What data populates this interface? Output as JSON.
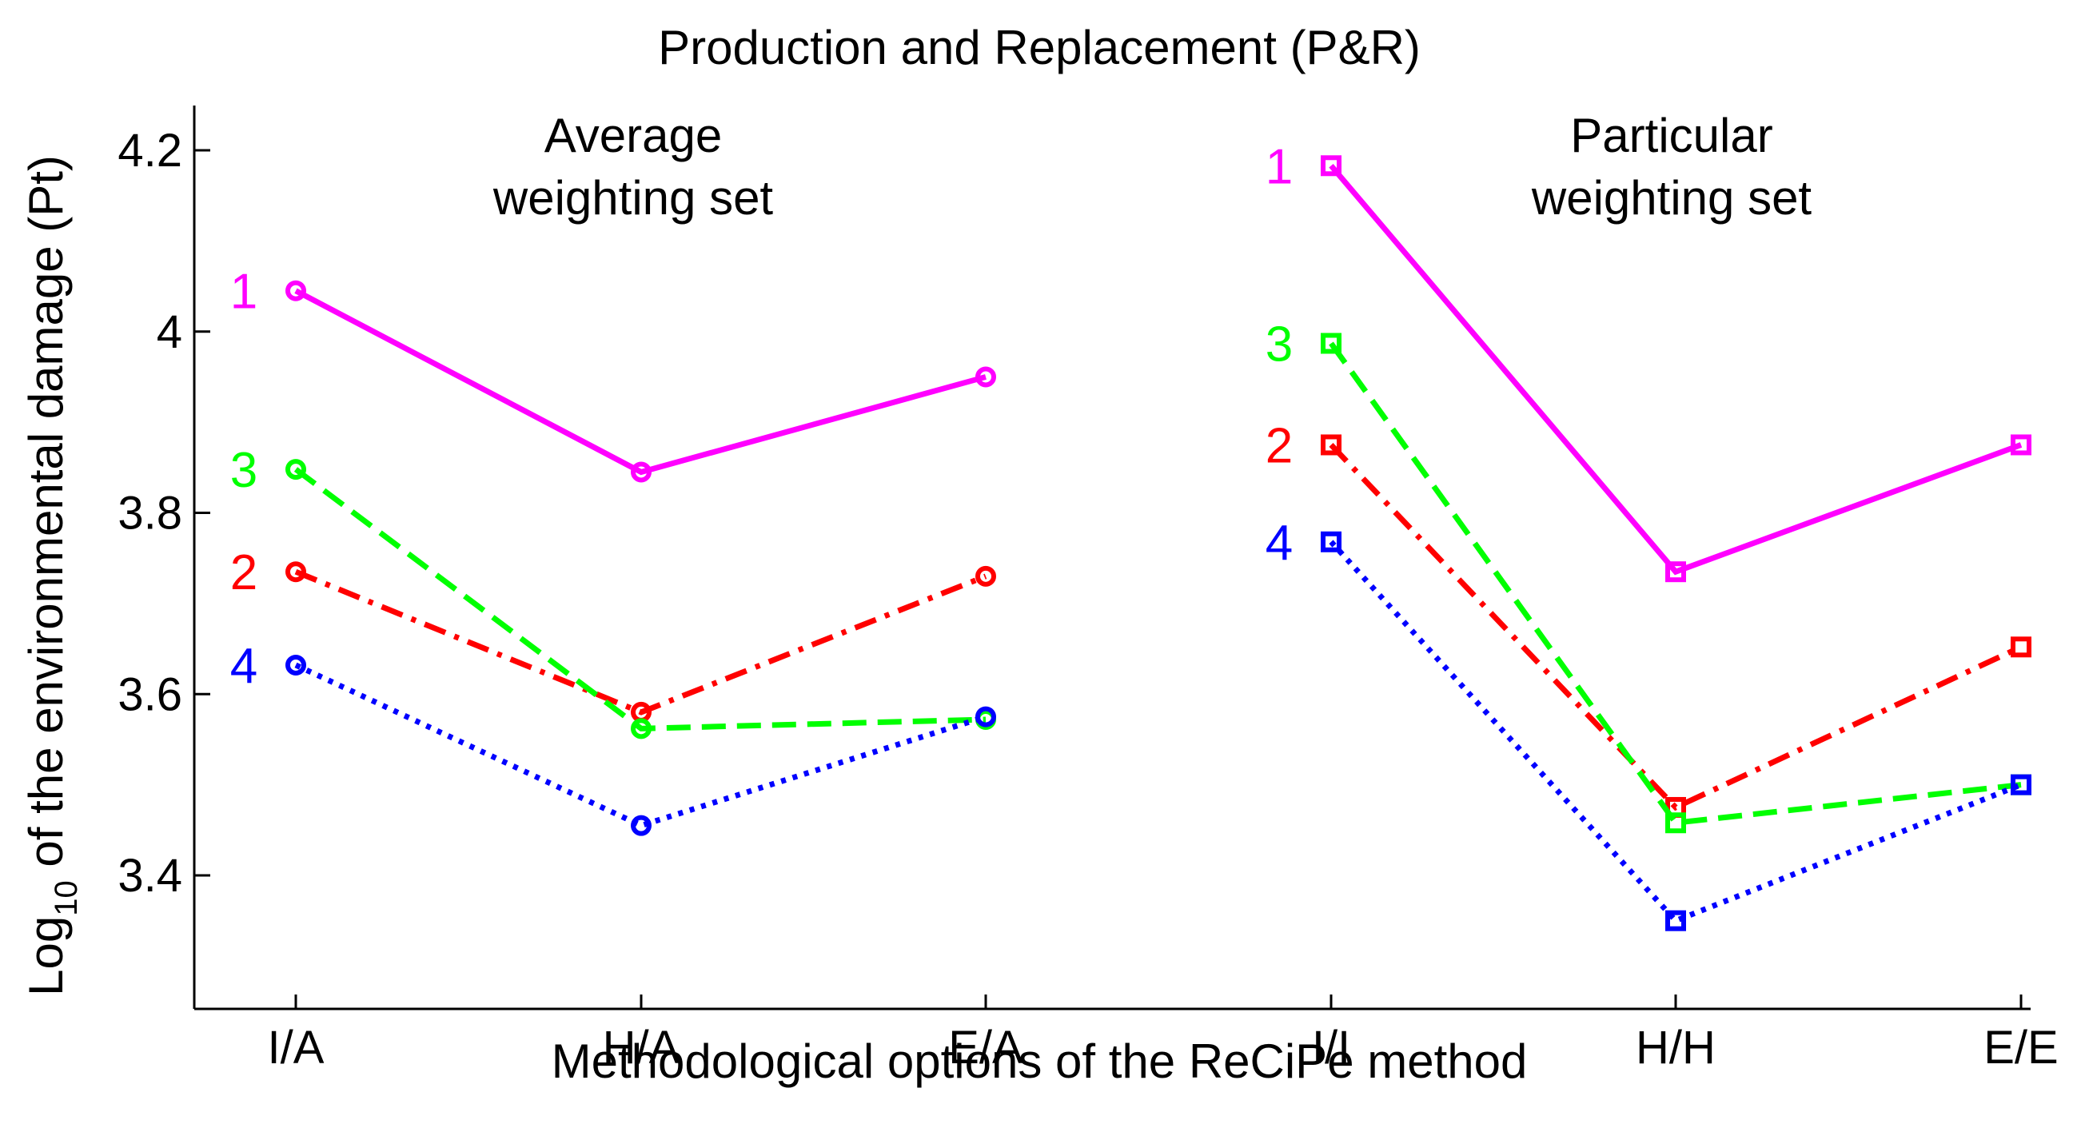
{
  "chart_data": {
    "type": "line",
    "title": "Production and Replacement (P&R)",
    "xlabel": "Methodological options of the ReCiPe method",
    "ylabel_prefix": "Log",
    "ylabel_subscript": "10",
    "ylabel_suffix": " of the environmental damage (Pt)",
    "categories": [
      "I/A",
      "H/A",
      "E/A",
      "I/I",
      "H/H",
      "E/E"
    ],
    "ylim": [
      3.25,
      4.25
    ],
    "yticks": [
      3.4,
      3.6,
      3.8,
      4.0,
      4.2
    ],
    "ytick_labels": [
      "3.4",
      "3.6",
      "3.8",
      "4",
      "4.2"
    ],
    "grid": false,
    "groups": [
      {
        "name": "Average weighting set",
        "label_lines": [
          "Average",
          "weighting set"
        ],
        "category_indices": [
          0,
          1,
          2
        ],
        "marker": "circle"
      },
      {
        "name": "Particular weighting set",
        "label_lines": [
          "Particular",
          "weighting set"
        ],
        "category_indices": [
          3,
          4,
          5
        ],
        "marker": "square"
      }
    ],
    "series": [
      {
        "name": "1",
        "label": "1",
        "color": "#ff00ff",
        "dash": "solid",
        "average": [
          4.045,
          3.845,
          3.95
        ],
        "particular": [
          4.183,
          3.735,
          3.875
        ]
      },
      {
        "name": "2",
        "label": "2",
        "color": "#ff0000",
        "dash": "dashdot",
        "average": [
          3.735,
          3.58,
          3.73
        ],
        "particular": [
          3.875,
          3.475,
          3.652
        ]
      },
      {
        "name": "3",
        "label": "3",
        "color": "#00ff00",
        "dash": "dashed",
        "average": [
          3.848,
          3.562,
          3.572
        ],
        "particular": [
          3.987,
          3.458,
          3.5
        ]
      },
      {
        "name": "4",
        "label": "4",
        "color": "#0000ff",
        "dash": "dotted",
        "average": [
          3.632,
          3.455,
          3.575
        ],
        "particular": [
          3.768,
          3.35,
          3.5
        ]
      }
    ]
  }
}
